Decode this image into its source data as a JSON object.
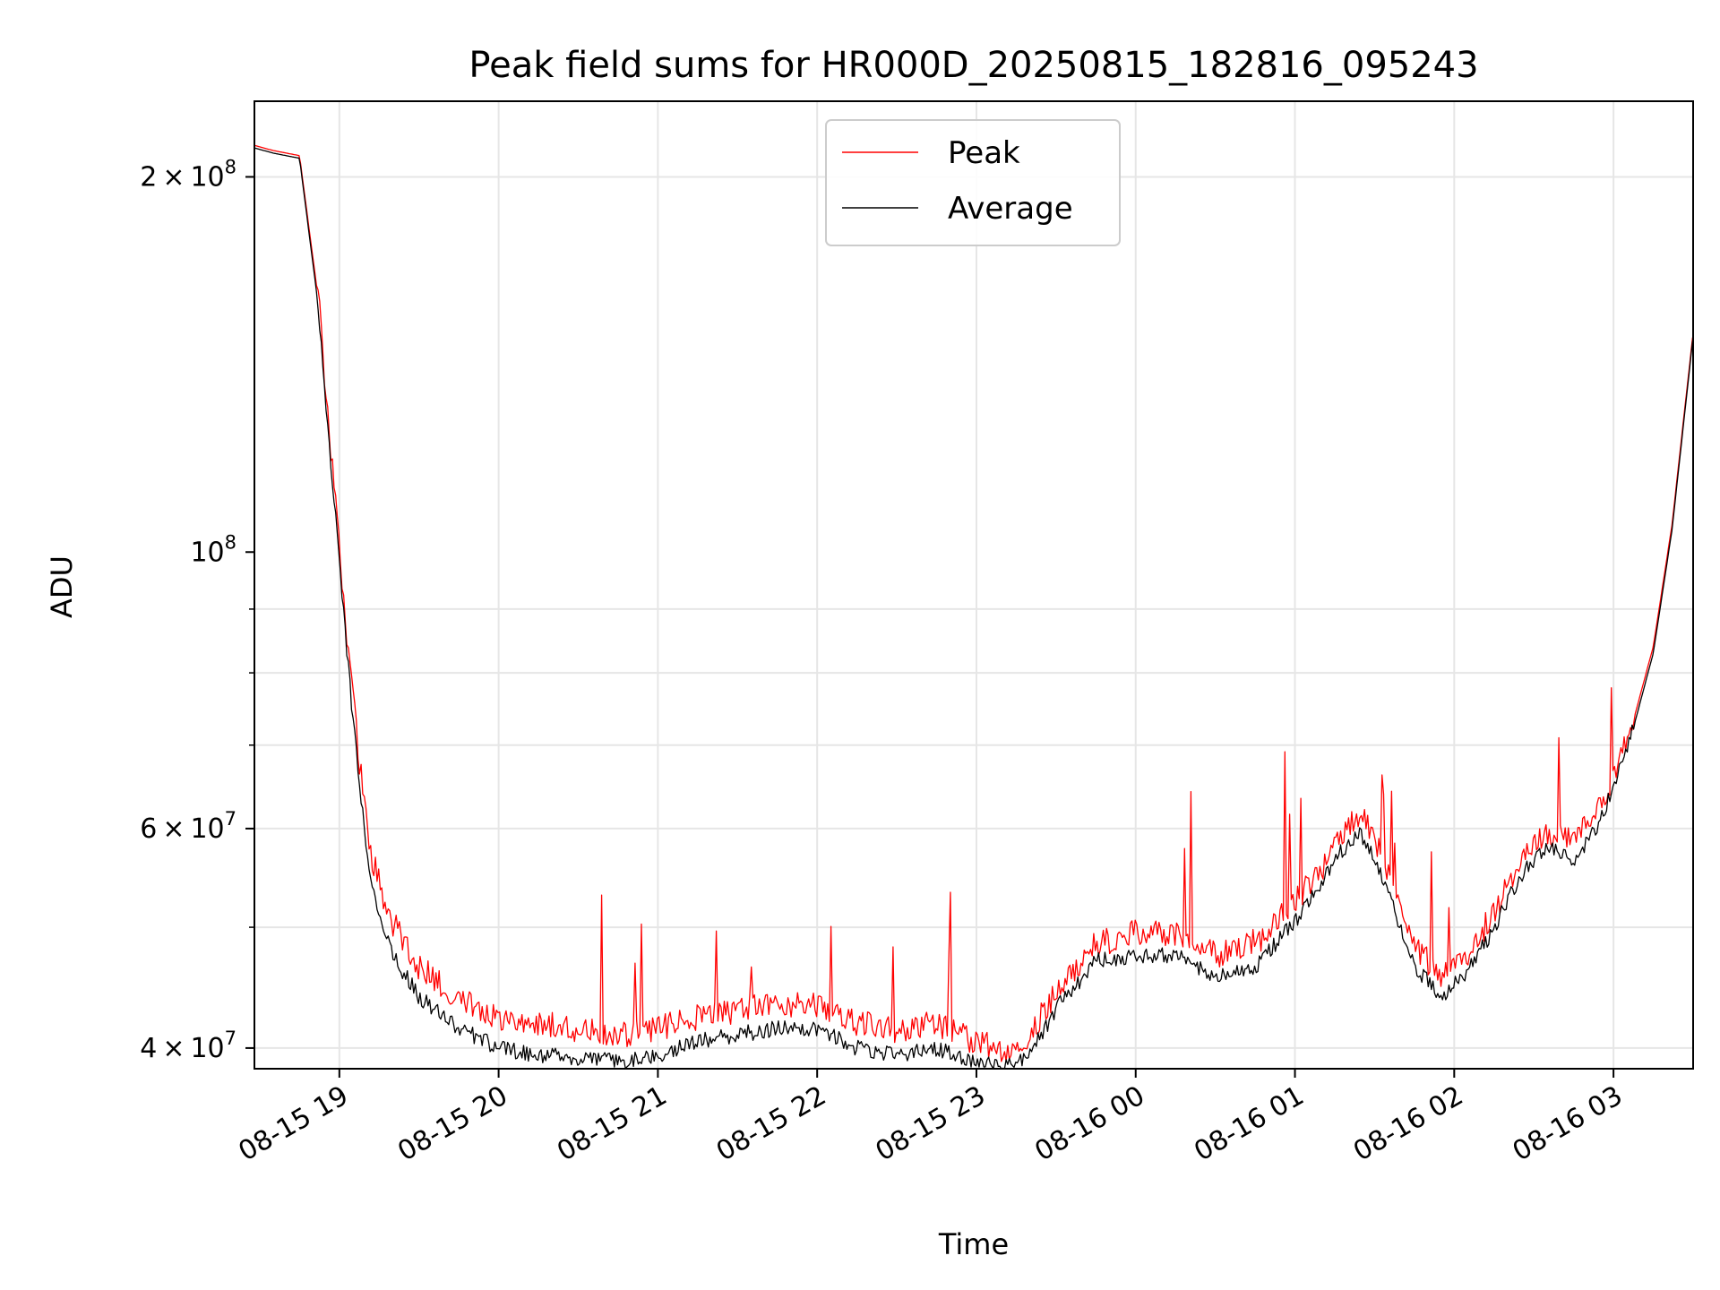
{
  "chart_data": {
    "type": "line",
    "title": "Peak field sums for HR000D_20250815_182816_095243",
    "xlabel": "Time",
    "ylabel": "ADU",
    "yscale": "log",
    "xlim": [
      "08-15 18:28",
      "08-16 03:30"
    ],
    "ylim": [
      38500000,
      230000000
    ],
    "x_ticks": [
      "08-15 19",
      "08-15 20",
      "08-15 21",
      "08-15 22",
      "08-15 23",
      "08-16 00",
      "08-16 01",
      "08-16 02",
      "08-16 03"
    ],
    "y_ticks": [
      {
        "value": 40000000,
        "mantissa": "4",
        "exp": "7"
      },
      {
        "value": 60000000,
        "mantissa": "6",
        "exp": "7"
      },
      {
        "value": 100000000,
        "mantissa": "",
        "exp": "8"
      },
      {
        "value": 200000000,
        "mantissa": "2",
        "exp": "8"
      }
    ],
    "grid": true,
    "legend_position": "upper center",
    "series": [
      {
        "name": "Peak",
        "color": "#ff0000",
        "x": [
          "18:28",
          "18:35",
          "18:45",
          "18:52",
          "18:56",
          "19:00",
          "19:04",
          "19:08",
          "19:12",
          "19:20",
          "19:30",
          "19:45",
          "20:00",
          "20:15",
          "20:30",
          "20:45",
          "21:00",
          "21:15",
          "21:30",
          "21:45",
          "22:00",
          "22:15",
          "22:30",
          "22:45",
          "23:00",
          "23:10",
          "23:20",
          "23:30",
          "23:45",
          "00:00",
          "00:15",
          "00:30",
          "00:45",
          "01:00",
          "01:10",
          "01:15",
          "01:25",
          "01:35",
          "01:45",
          "01:55",
          "02:05",
          "02:15",
          "02:25",
          "02:35",
          "02:45",
          "02:55",
          "03:05",
          "03:15",
          "03:22",
          "03:30"
        ],
        "values": [
          212000000,
          210000000,
          208000000,
          160000000,
          125000000,
          100000000,
          80000000,
          66000000,
          56000000,
          50000000,
          46000000,
          43500000,
          42000000,
          41500000,
          41000000,
          40500000,
          41000000,
          42000000,
          42500000,
          43000000,
          43000000,
          41500000,
          41000000,
          41500000,
          40000000,
          39500000,
          40500000,
          44000000,
          48000000,
          49000000,
          49000000,
          47000000,
          48000000,
          52000000,
          55000000,
          58000000,
          61000000,
          55000000,
          48000000,
          45000000,
          47000000,
          51000000,
          56000000,
          59000000,
          58000000,
          62000000,
          70000000,
          84000000,
          105000000,
          150000000
        ]
      },
      {
        "name": "Average",
        "color": "#000000",
        "x": [
          "18:28",
          "18:35",
          "18:45",
          "18:52",
          "18:56",
          "19:00",
          "19:04",
          "19:08",
          "19:12",
          "19:20",
          "19:30",
          "19:45",
          "20:00",
          "20:15",
          "20:30",
          "20:45",
          "21:00",
          "21:15",
          "21:30",
          "21:45",
          "22:00",
          "22:15",
          "22:30",
          "22:45",
          "23:00",
          "23:10",
          "23:20",
          "23:30",
          "23:45",
          "00:00",
          "00:15",
          "00:30",
          "00:45",
          "01:00",
          "01:10",
          "01:15",
          "01:25",
          "01:35",
          "01:45",
          "01:55",
          "02:05",
          "02:15",
          "02:25",
          "02:35",
          "02:45",
          "02:55",
          "03:05",
          "03:15",
          "03:22",
          "03:30"
        ],
        "values": [
          211000000,
          209000000,
          207000000,
          158000000,
          123000000,
          98000000,
          78000000,
          64000000,
          54000000,
          47500000,
          44000000,
          41500000,
          40000000,
          39500000,
          39300000,
          39000000,
          39500000,
          40500000,
          41000000,
          41500000,
          41500000,
          40000000,
          39500000,
          40000000,
          38800000,
          38700000,
          39500000,
          43000000,
          47000000,
          47500000,
          47500000,
          45500000,
          46500000,
          50500000,
          54000000,
          57000000,
          59500000,
          53500000,
          46500000,
          44000000,
          46000000,
          50000000,
          55000000,
          58000000,
          56500000,
          61000000,
          69000000,
          83000000,
          104000000,
          149000000
        ]
      }
    ]
  }
}
